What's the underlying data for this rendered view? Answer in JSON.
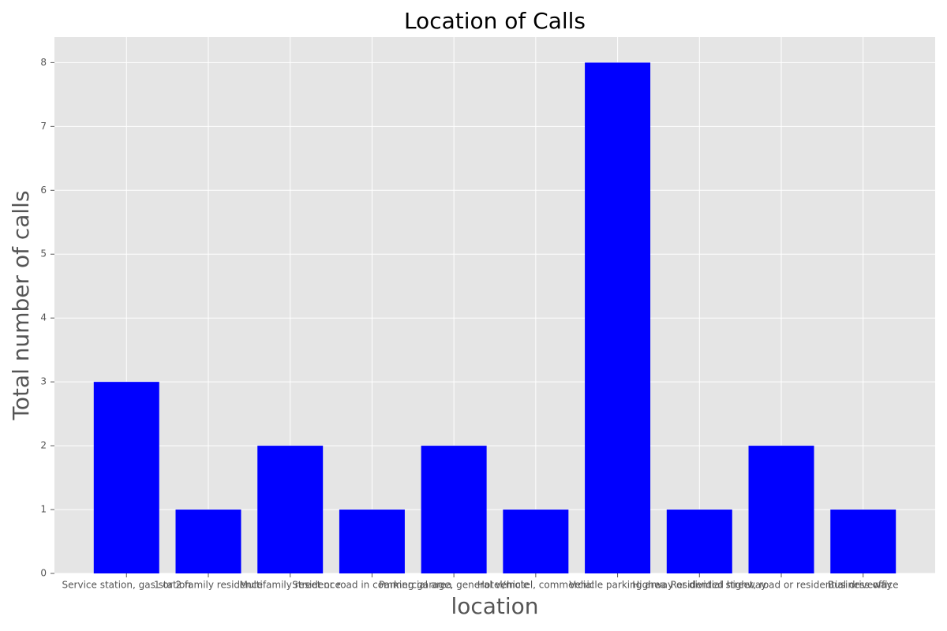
{
  "chart_data": {
    "type": "bar",
    "title": "Location of Calls",
    "xlabel": "location",
    "ylabel": "Total number of calls",
    "categories": [
      "Service station, gas station",
      "1 or 2 family residence",
      "Multifamily residence",
      "Street or road in commercial area",
      "Parking garage, general vehicle",
      "Hotel/motel, commercial",
      "Vehicle parking area",
      "Highway or divided highway",
      "Residential street, road or residential driveway",
      "Business office"
    ],
    "values": [
      3,
      1,
      2,
      1,
      2,
      1,
      8,
      1,
      2,
      1
    ],
    "color": "#0000ff",
    "ylim": [
      0,
      8.4
    ],
    "yticks": [
      0,
      1,
      2,
      3,
      4,
      5,
      6,
      7,
      8
    ],
    "grid": true
  }
}
